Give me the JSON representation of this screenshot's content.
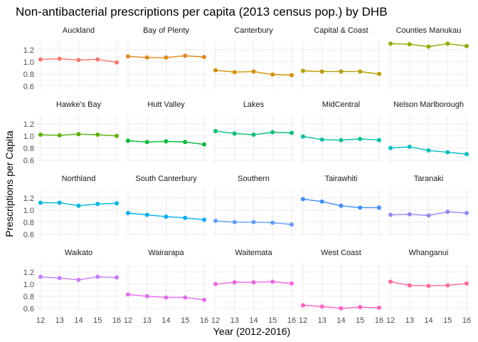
{
  "chart_data": {
    "type": "line",
    "title": "Non-antibacterial prescriptions per capita (2013 census pop.) by DHB",
    "xlabel": "Year (2012-2016)",
    "ylabel": "Prescriptions per Capita",
    "x": [
      12,
      13,
      14,
      15,
      16
    ],
    "x_ticks": [
      "12",
      "13",
      "14",
      "15",
      "16"
    ],
    "y_ticks": [
      "0.6",
      "0.8",
      "1.0",
      "1.2"
    ],
    "ylim": [
      0.55,
      1.35
    ],
    "grid": true,
    "facets": [
      {
        "name": "Auckland",
        "color": "#F8766D",
        "values": [
          1.04,
          1.05,
          1.03,
          1.04,
          0.99
        ]
      },
      {
        "name": "Bay of Plenty",
        "color": "#E7861B",
        "values": [
          1.09,
          1.07,
          1.07,
          1.1,
          1.08
        ]
      },
      {
        "name": "Canterbury",
        "color": "#D39200",
        "values": [
          0.86,
          0.83,
          0.84,
          0.79,
          0.78
        ]
      },
      {
        "name": "Capital & Coast",
        "color": "#B79F00",
        "values": [
          0.85,
          0.84,
          0.84,
          0.84,
          0.8
        ]
      },
      {
        "name": "Counties Manukau",
        "color": "#93AA00",
        "values": [
          1.3,
          1.29,
          1.25,
          1.3,
          1.26
        ]
      },
      {
        "name": "Hawke's Bay",
        "color": "#5BB300",
        "values": [
          1.02,
          1.01,
          1.03,
          1.02,
          1.0
        ]
      },
      {
        "name": "Hutt Valley",
        "color": "#00BA38",
        "values": [
          0.92,
          0.9,
          0.91,
          0.9,
          0.86
        ]
      },
      {
        "name": "Lakes",
        "color": "#00BF74",
        "values": [
          1.08,
          1.04,
          1.02,
          1.06,
          1.05
        ]
      },
      {
        "name": "MidCentral",
        "color": "#00C19F",
        "values": [
          0.99,
          0.94,
          0.93,
          0.95,
          0.93
        ]
      },
      {
        "name": "Nelson Marlborough",
        "color": "#00BFC4",
        "values": [
          0.8,
          0.82,
          0.76,
          0.73,
          0.7
        ]
      },
      {
        "name": "Northland",
        "color": "#00B9E3",
        "values": [
          1.12,
          1.12,
          1.07,
          1.1,
          1.11
        ]
      },
      {
        "name": "South Canterbury",
        "color": "#00ADFA",
        "values": [
          0.95,
          0.92,
          0.89,
          0.87,
          0.84
        ]
      },
      {
        "name": "Southern",
        "color": "#619CFF",
        "values": [
          0.82,
          0.8,
          0.8,
          0.79,
          0.76
        ]
      },
      {
        "name": "Tairawhiti",
        "color": "#3D8CFF",
        "values": [
          1.18,
          1.14,
          1.07,
          1.04,
          1.04
        ]
      },
      {
        "name": "Taranaki",
        "color": "#8F89FF",
        "values": [
          0.92,
          0.93,
          0.91,
          0.97,
          0.95
        ]
      },
      {
        "name": "Waikato",
        "color": "#C77CFF",
        "values": [
          1.12,
          1.1,
          1.07,
          1.12,
          1.11
        ]
      },
      {
        "name": "Wairarapa",
        "color": "#E76BF3",
        "values": [
          0.83,
          0.8,
          0.78,
          0.78,
          0.74
        ]
      },
      {
        "name": "Waitemata",
        "color": "#F564E3",
        "values": [
          1.0,
          1.03,
          1.03,
          1.04,
          1.01
        ]
      },
      {
        "name": "West Coast",
        "color": "#FF61C3",
        "values": [
          0.65,
          0.63,
          0.6,
          0.62,
          0.61
        ]
      },
      {
        "name": "Whanganui",
        "color": "#FF6A98",
        "values": [
          1.04,
          0.98,
          0.97,
          0.98,
          1.01
        ]
      }
    ]
  }
}
